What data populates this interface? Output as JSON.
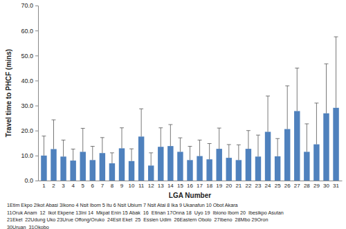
{
  "chart_data": {
    "type": "bar",
    "y_label": "Travel time to PHCF (mins)",
    "x_label": "LGA Number",
    "categories": [
      "1",
      "2",
      "3",
      "4",
      "5",
      "6",
      "7",
      "8",
      "9",
      "10",
      "11",
      "12",
      "13",
      "14",
      "15",
      "16",
      "17",
      "18",
      "19",
      "20",
      "21",
      "22",
      "23",
      "24",
      "25",
      "26",
      "27",
      "28",
      "29",
      "30",
      "31"
    ],
    "values": [
      10.0,
      12.6,
      9.6,
      8.0,
      11.5,
      8.2,
      11.0,
      6.9,
      12.9,
      7.8,
      17.6,
      6.0,
      13.5,
      13.8,
      11.5,
      8.2,
      9.8,
      8.5,
      12.7,
      9.1,
      8.2,
      12.7,
      9.6,
      19.5,
      9.7,
      20.6,
      27.8,
      11.5,
      14.5,
      26.9,
      29.1
    ],
    "errors": [
      7.8,
      11.7,
      6.6,
      4.6,
      9.4,
      5.5,
      6.2,
      4.2,
      8.2,
      4.9,
      11.1,
      5.1,
      7.6,
      8.6,
      5.6,
      5.5,
      6.4,
      6.3,
      8.3,
      5.3,
      6.1,
      7.3,
      8.6,
      14.3,
      7.1,
      17.3,
      17.2,
      11.2,
      16.5,
      19.8,
      28.4
    ],
    "color": "#4f81bd",
    "ylim": [
      0,
      70
    ],
    "yticks": [
      {
        "value": 0,
        "label": "0.0"
      },
      {
        "value": 10,
        "label": "10.0"
      },
      {
        "value": 20,
        "label": "20.0"
      },
      {
        "value": 30,
        "label": "30.0"
      },
      {
        "value": 40,
        "label": "40.0"
      },
      {
        "value": 50,
        "label": "50.0"
      },
      {
        "value": 60,
        "label": "60.0"
      },
      {
        "value": 70,
        "label": "70.0"
      }
    ],
    "grid": false,
    "annotations": [
      "1Etim Ekpo 2Ikot Abasi 3Ikono 4 Nsit Ibom 5 Itu 6 Nsit Ubium 7 Nsit Atai 8 Ika 9 Ukanafun 10 Obot Akara",
      "11Oruk Anam  12  Ikot Ekpene 13Ini 14  Mkpat Enin 15 Abak  16  Etinan 17Onna 18  Uyo 19  Ibiono Ibom 20  Ibesikpo Asutan",
      "21Eket  22Udung Uko 23Urue Offong/Oruko  24Esit Eket  25  Essien Udim  26Eastern Obolo  27Ibeno  28Mbo 29Oron",
      "30Uruan  31Okobo"
    ]
  }
}
